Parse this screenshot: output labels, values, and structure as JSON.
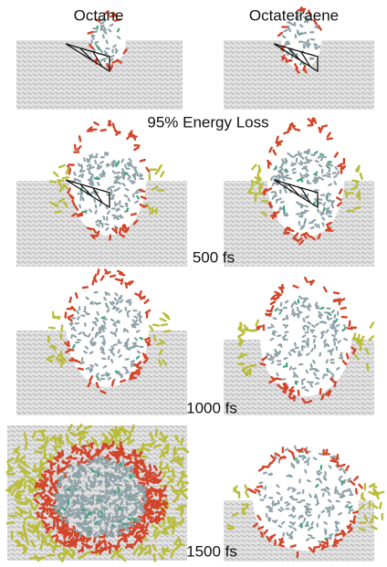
{
  "columns": [
    "Octane",
    "Octatetraene"
  ],
  "rows": [
    "95% Energy Loss",
    "500 fs",
    "1000 fs",
    "1500 fs"
  ]
}
